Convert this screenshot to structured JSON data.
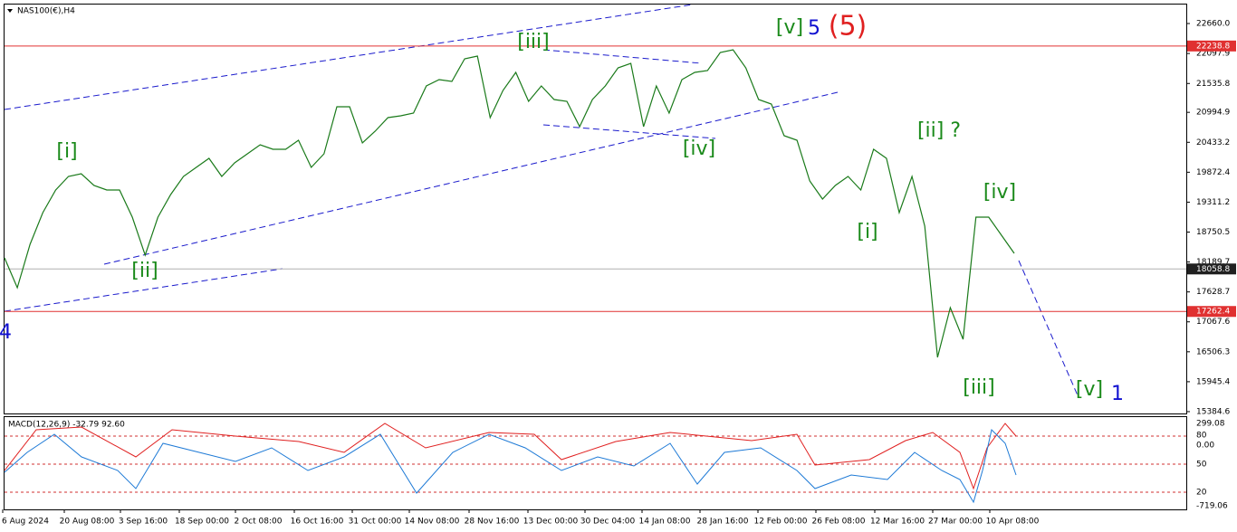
{
  "header": {
    "title": "NAS100(€),H4"
  },
  "chart_data": {
    "type": "line",
    "ylim": [
      15350,
      23016
    ],
    "yticks": [
      {
        "value": 22660,
        "label": "22660.0"
      },
      22097.9,
      21535.8,
      20994.9,
      20433.2,
      19872.4,
      19311.2,
      18750.5,
      18189.7,
      17628.7,
      17067.6,
      16506.3,
      15945.4,
      15384.6
    ],
    "levels": [
      {
        "value": 22238.8,
        "label": "22238.8",
        "color": "#e03030"
      },
      {
        "value": 18058.8,
        "label": "18058.8",
        "color": "#b0b0b0"
      },
      {
        "value": 17262.4,
        "label": "17262.4",
        "color": "#e03030"
      }
    ],
    "series": [
      {
        "name": "NAS100(€)",
        "color": "#1a7a1a",
        "values": [
          18267,
          17708,
          18522,
          19115,
          19539,
          19794,
          19845,
          19624,
          19539,
          19539,
          19031,
          18318,
          19031,
          19455,
          19794,
          19963,
          20133,
          19794,
          20048,
          20218,
          20387,
          20303,
          20303,
          20472,
          19963,
          20218,
          21100,
          21100,
          20421,
          20642,
          20896,
          20930,
          20981,
          21490,
          21608,
          21575,
          21999,
          22049,
          20896,
          21405,
          21744,
          21201,
          21490,
          21235,
          21201,
          20727,
          21235,
          21490,
          21829,
          21914,
          20727,
          21490,
          20981,
          21608,
          21744,
          21778,
          22117,
          22168,
          21829,
          21235,
          21151,
          20557,
          20472,
          19709,
          19370,
          19624,
          19794,
          19539,
          20303,
          20133,
          19115,
          19794,
          18861,
          16402,
          17335,
          16741,
          19031,
          19031,
          18691,
          18352
        ]
      }
    ],
    "annotations": [
      {
        "text": "4",
        "color": "#1010d0"
      },
      {
        "text": "[i]",
        "color": "#1a8a1a"
      },
      {
        "text": "[ii]",
        "color": "#1a8a1a"
      },
      {
        "text": "[iii]",
        "color": "#1a8a1a"
      },
      {
        "text": "[iv]",
        "color": "#1a8a1a"
      },
      {
        "text": "[v]",
        "color": "#1a8a1a"
      },
      {
        "text": "5",
        "color": "#1010d0"
      },
      {
        "text": "(5)",
        "color": "#e02020"
      },
      {
        "text": "[i]",
        "color": "#1a8a1a"
      },
      {
        "text": "[ii] ?",
        "color": "#1a8a1a"
      },
      {
        "text": "[iii]",
        "color": "#1a8a1a"
      },
      {
        "text": "[iv]",
        "color": "#1a8a1a"
      },
      {
        "text": "[v]",
        "color": "#1a8a1a"
      },
      {
        "text": "1",
        "color": "#1010d0"
      }
    ],
    "time_labels": [
      "6 Aug 2024",
      "20 Aug 08:00",
      "3 Sep 16:00",
      "18 Sep 00:00",
      "2 Oct 08:00",
      "16 Oct 16:00",
      "31 Oct 00:00",
      "14 Nov 08:00",
      "28 Nov 16:00",
      "13 Dec 00:00",
      "30 Dec 04:00",
      "14 Jan 08:00",
      "28 Jan 16:00",
      "12 Feb 00:00",
      "26 Feb 08:00",
      "12 Mar 16:00",
      "27 Mar 00:00",
      "10 Apr 08:00"
    ]
  },
  "macd": {
    "title": "MACD(12,26,9) -32.79 92.60",
    "axis_labels": [
      "299.08",
      "80",
      "0.00",
      "50",
      "20",
      "-719.06"
    ]
  }
}
